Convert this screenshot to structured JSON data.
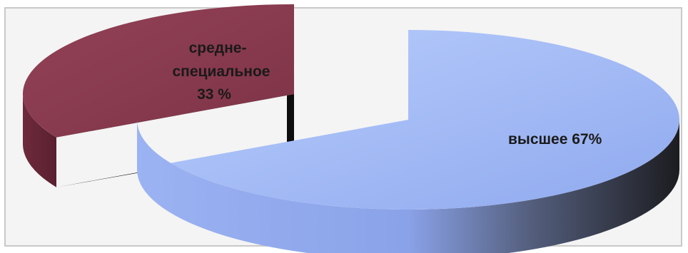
{
  "chart_data": {
    "type": "pie",
    "title": "",
    "categories": [
      "средне-специальное",
      "высшее"
    ],
    "values": [
      33,
      67
    ],
    "unit": "%",
    "labels": {
      "secondary": [
        "средне-",
        "специальное",
        "33 %"
      ],
      "higher": "высшее 67%"
    },
    "legend": "none",
    "style": "3d-exploded",
    "colors": {
      "secondary_top": "#8b3a4e",
      "secondary_side": "#0d0d0d",
      "higher_top": "#9db9f5",
      "higher_side_light": "#8aa4e6",
      "higher_side_dark": "#2a2a30"
    }
  }
}
